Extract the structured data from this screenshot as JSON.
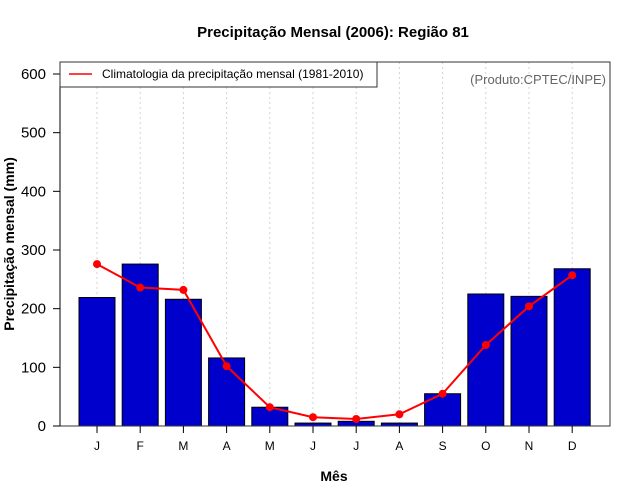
{
  "chart_data": {
    "type": "bar",
    "title": "Precipitação Mensal (2006): Região 81",
    "xlabel": "Mês",
    "ylabel": "Precipitação mensal (mm)",
    "ylim": [
      0,
      600
    ],
    "yticks": [
      0,
      100,
      200,
      300,
      400,
      500,
      600
    ],
    "categories": [
      "J",
      "F",
      "M",
      "A",
      "M",
      "J",
      "J",
      "A",
      "S",
      "O",
      "N",
      "D"
    ],
    "grid": "vertical dotted",
    "series": [
      {
        "name": "Precipitação mensal (2006)",
        "type": "bar",
        "color": "#0000CD",
        "values": [
          219,
          276,
          216,
          116,
          32,
          5,
          8,
          5,
          55,
          225,
          221,
          268
        ]
      },
      {
        "name": "Climatologia da precipitação mensal (1981-2010)",
        "type": "line",
        "color": "#FF0000",
        "values": [
          276,
          236,
          232,
          102,
          32,
          15,
          12,
          20,
          55,
          138,
          204,
          257
        ]
      }
    ],
    "legend": {
      "position": "top-left",
      "entries": [
        "Climatologia da precipitação mensal (1981-2010)"
      ]
    },
    "annotation": "(Produto:CPTEC/INPE)"
  }
}
